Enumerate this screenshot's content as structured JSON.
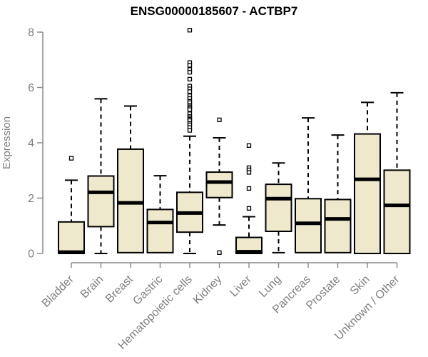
{
  "title": "ENSG00000185607 - ACTBP7",
  "chart_data": {
    "type": "boxplot",
    "title": "ENSG00000185607 - ACTBP7",
    "xlabel": "",
    "ylabel": "Expression",
    "ylim": [
      0,
      8
    ],
    "yticks": [
      0,
      2,
      4,
      6,
      8
    ],
    "grid": false,
    "legend": null,
    "categories": [
      "Bladder",
      "Brain",
      "Breast",
      "Gastric",
      "Hematopoietic cells",
      "Kidney",
      "Liver",
      "Lung",
      "Pancreas",
      "Prostate",
      "Skin",
      "Unknown / Other"
    ],
    "boxes": [
      {
        "category": "Bladder",
        "whisker_low": 0,
        "q1": 0,
        "median": 0.05,
        "q3": 1.14,
        "whisker_high": 2.65,
        "outliers": [
          3.44
        ]
      },
      {
        "category": "Brain",
        "whisker_low": 0,
        "q1": 0.97,
        "median": 2.21,
        "q3": 2.8,
        "whisker_high": 5.59,
        "outliers": []
      },
      {
        "category": "Breast",
        "whisker_low": 0.03,
        "q1": 0.03,
        "median": 1.83,
        "q3": 3.77,
        "whisker_high": 5.33,
        "outliers": []
      },
      {
        "category": "Gastric",
        "whisker_low": 0,
        "q1": 0.03,
        "median": 1.12,
        "q3": 1.59,
        "whisker_high": 2.81,
        "outliers": []
      },
      {
        "category": "Hematopoietic cells",
        "whisker_low": 0,
        "q1": 0.77,
        "median": 1.46,
        "q3": 2.21,
        "whisker_high": 4.24,
        "outliers": [
          8.07,
          6.9,
          6.8,
          6.65,
          6.55,
          6.3,
          6.05,
          5.95,
          5.85,
          5.7,
          5.6,
          5.5,
          5.45,
          5.35,
          5.3,
          5.25,
          5.2,
          5.05,
          4.95,
          4.9,
          4.85,
          4.8,
          4.7,
          4.65,
          4.55,
          4.45
        ]
      },
      {
        "category": "Kidney",
        "whisker_low": 1.03,
        "q1": 2.02,
        "median": 2.58,
        "q3": 2.94,
        "whisker_high": 4.18,
        "outliers": [
          4.83,
          0.03
        ]
      },
      {
        "category": "Liver",
        "whisker_low": 0,
        "q1": 0,
        "median": 0.06,
        "q3": 0.58,
        "whisker_high": 1.33,
        "outliers": [
          3.9,
          3.1,
          3.02,
          2.93,
          2.35,
          1.63
        ]
      },
      {
        "category": "Lung",
        "whisker_low": 0.03,
        "q1": 0.8,
        "median": 1.98,
        "q3": 2.5,
        "whisker_high": 3.27,
        "outliers": []
      },
      {
        "category": "Pancreas",
        "whisker_low": 0,
        "q1": 0.03,
        "median": 1.09,
        "q3": 1.98,
        "whisker_high": 4.9,
        "outliers": []
      },
      {
        "category": "Prostate",
        "whisker_low": 0,
        "q1": 0.03,
        "median": 1.25,
        "q3": 1.95,
        "whisker_high": 4.28,
        "outliers": []
      },
      {
        "category": "Skin",
        "whisker_low": 0,
        "q1": 0,
        "median": 2.68,
        "q3": 4.32,
        "whisker_high": 5.46,
        "outliers": []
      },
      {
        "category": "Unknown / Other",
        "whisker_low": 0,
        "q1": 0,
        "median": 1.74,
        "q3": 3.01,
        "whisker_high": 5.81,
        "outliers": []
      }
    ],
    "colors": {
      "box_fill": "#EEE8CD",
      "box_border": "#000000",
      "median": "#000000",
      "whisker": "#000000",
      "outlier_stroke": "#000000",
      "outlier_fill": "#FFFFFF",
      "axis": "#8A8A8A",
      "tick_label": "#808080",
      "title": "#000000",
      "background": "#FFFFFF"
    }
  }
}
